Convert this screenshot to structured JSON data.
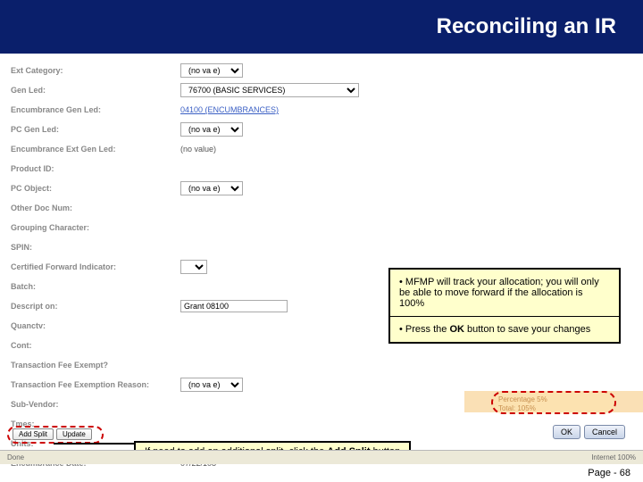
{
  "header": {
    "title": "Reconciling an IR"
  },
  "form": {
    "rows": [
      {
        "label": "Ext Category:",
        "type": "dropdown",
        "value": "(no va  e)"
      },
      {
        "label": "Gen Led:",
        "type": "wide-dropdown",
        "value": "76700 (BASIC SERVICES)"
      },
      {
        "label": "Encumbrance Gen Led:",
        "type": "link",
        "value": "04100 (ENCUMBRANCES)"
      },
      {
        "label": "PC Gen Led:",
        "type": "dropdown",
        "value": "(no va  e)"
      },
      {
        "label": "Encumbrance Ext Gen Led:",
        "type": "text",
        "value": "(no value)"
      },
      {
        "label": "Product ID:",
        "type": "blank",
        "value": ""
      },
      {
        "label": "PC Object:",
        "type": "dropdown",
        "value": "(no va  e)"
      },
      {
        "label": "Other Doc Num:",
        "type": "blank",
        "value": ""
      },
      {
        "label": "Grouping Character:",
        "type": "blank",
        "value": ""
      },
      {
        "label": "SPIN:",
        "type": "blank",
        "value": ""
      },
      {
        "label": "Certified Forward Indicator:",
        "type": "dropdown-small",
        "value": ""
      },
      {
        "label": "Batch:",
        "type": "blank",
        "value": ""
      },
      {
        "label": "Descript on:",
        "type": "input",
        "value": "Grant 08100"
      },
      {
        "label": "Quanctv:",
        "type": "blank",
        "value": ""
      },
      {
        "label": "Cont:",
        "type": "blank",
        "value": ""
      },
      {
        "label": "Transaction Fee Exempt?",
        "type": "blank",
        "value": ""
      },
      {
        "label": "Transaction Fee Exemption Reason:",
        "type": "dropdown",
        "value": "(no va  e)"
      },
      {
        "label": "Sub-Vendor:",
        "type": "blank",
        "value": ""
      },
      {
        "label": "Tmes:",
        "type": "blank",
        "value": ""
      },
      {
        "label": "Units:",
        "type": "blank",
        "value": ""
      },
      {
        "label": "Encumbrance Date:",
        "type": "text",
        "value": "07/22/108"
      }
    ]
  },
  "tips": {
    "tip1_prefix": "• MFMP will track your allocation; you will only be able to move forward if the allocation is 100%",
    "tip2_prefix": "• Press the ",
    "tip2_bold": "OK",
    "tip2_suffix": " button to save your changes"
  },
  "highlight": {
    "line1": "Percentage  5%",
    "line2": "Total:  105%"
  },
  "split": {
    "addSplit": "Add Split",
    "update": "Update"
  },
  "actions": {
    "ok": "OK",
    "cancel": "Cancel"
  },
  "instruction": {
    "prefix": "If need to add an additional split, click the ",
    "bold": "Add Split",
    "suffix": " button"
  },
  "statusbar": {
    "left": "Done",
    "right": "Internet         100%"
  },
  "page": {
    "label": "Page - 68"
  }
}
